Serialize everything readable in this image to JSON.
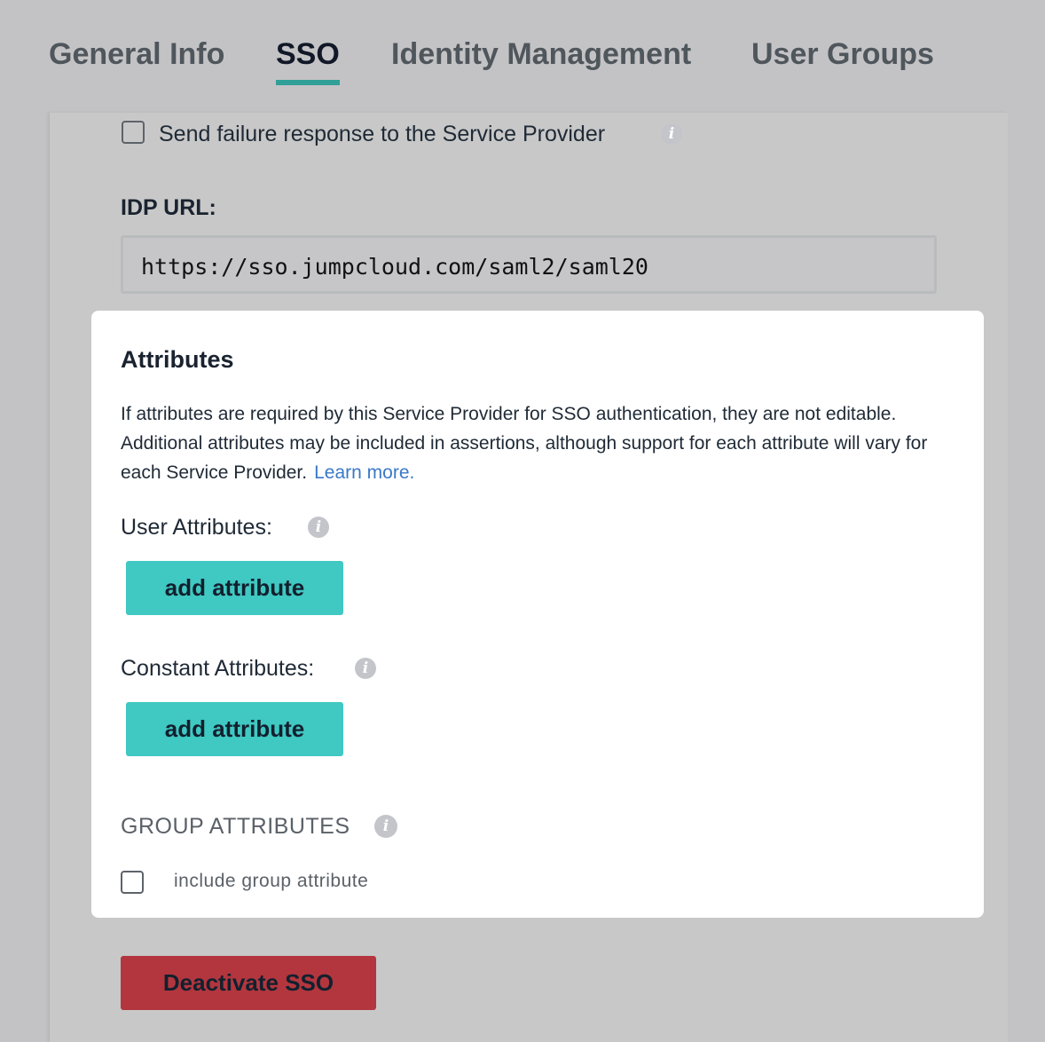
{
  "tabs": [
    {
      "label": "General Info"
    },
    {
      "label": "SSO",
      "active": true
    },
    {
      "label": "Identity Management"
    },
    {
      "label": "User Groups"
    }
  ],
  "failure_response": {
    "label": "Send failure response to the Service Provider",
    "checked": false
  },
  "idp_url": {
    "label": "IDP URL:",
    "value": "https://sso.jumpcloud.com/saml2/saml20"
  },
  "attributes": {
    "title": "Attributes",
    "description": "If attributes are required by this Service Provider for SSO authentication, they are not editable. Additional attributes may be included in assertions, although support for each attribute will vary for each Service Provider.",
    "learn_more": "Learn more.",
    "user_attributes_label": "User Attributes:",
    "constant_attributes_label": "Constant Attributes:",
    "add_attribute_label": "add attribute",
    "group_attributes_label": "GROUP ATTRIBUTES",
    "include_group_label": "include group attribute",
    "include_group_checked": false
  },
  "deactivate_label": "Deactivate SSO",
  "colors": {
    "accent": "#2f9f97",
    "button": "#40c8c2",
    "danger": "#b3363e",
    "link": "#3a78c9"
  }
}
